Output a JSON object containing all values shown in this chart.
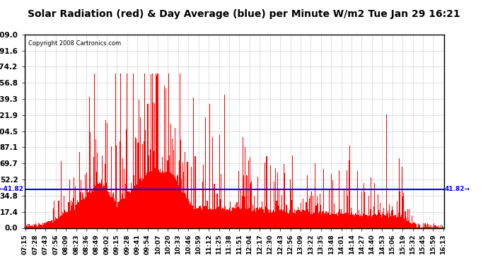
{
  "title": "Solar Radiation (red) & Day Average (blue) per Minute W/m2 Tue Jan 29 16:21",
  "copyright": "Copyright 2008 Cartronics.com",
  "y_max": 209.0,
  "y_min": 0.0,
  "y_ticks": [
    0.0,
    17.4,
    34.8,
    52.2,
    69.7,
    87.1,
    104.5,
    121.9,
    139.3,
    156.8,
    174.2,
    191.6,
    209.0
  ],
  "avg_line": 41.82,
  "bar_color": "#FF0000",
  "line_color": "#0000FF",
  "bg_color": "#FFFFFF",
  "grid_color": "#AAAAAA",
  "title_bg": "#DDDDDD",
  "x_labels": [
    "07:15",
    "07:28",
    "07:43",
    "07:56",
    "08:09",
    "08:23",
    "08:36",
    "08:49",
    "09:02",
    "09:15",
    "09:28",
    "09:41",
    "09:54",
    "10:07",
    "10:20",
    "10:33",
    "10:46",
    "10:59",
    "11:12",
    "11:25",
    "11:38",
    "11:51",
    "12:04",
    "12:17",
    "12:30",
    "12:43",
    "12:56",
    "13:09",
    "13:22",
    "13:35",
    "13:48",
    "14:01",
    "14:14",
    "14:27",
    "14:40",
    "14:53",
    "15:06",
    "15:19",
    "15:32",
    "15:45",
    "15:59",
    "16:13"
  ]
}
